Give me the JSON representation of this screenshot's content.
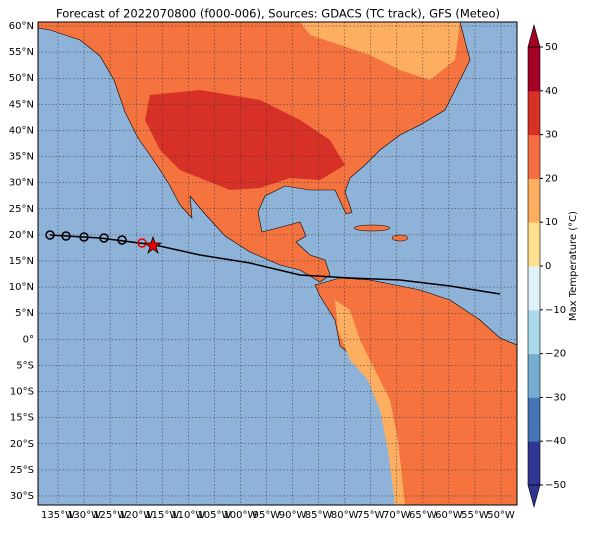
{
  "title": "Forecast of 2022070800 (f000-006), Sources: GDACS (TC track), GFS (Meteo)",
  "latitude_labels": [
    "60°N",
    "55°N",
    "50°N",
    "45°N",
    "40°N",
    "35°N",
    "30°N",
    "25°N",
    "20°N",
    "15°N",
    "10°N",
    "5°N",
    "0°",
    "5°S",
    "10°S",
    "15°S",
    "20°S",
    "25°S",
    "30°S"
  ],
  "longitude_labels": [
    "135°W",
    "130°W",
    "125°W",
    "120°W",
    "115°W",
    "110°W",
    "105°W",
    "100°W",
    "95°W",
    "90°W",
    "85°W",
    "80°W",
    "75°W",
    "70°W",
    "65°W",
    "60°W",
    "55°W",
    "50°W"
  ],
  "colorbar": {
    "label": "Max Temperature (°C)",
    "lim": [
      -50,
      50
    ],
    "ticks": [
      50,
      40,
      30,
      20,
      10,
      0,
      {
        "value": -10,
        "label": "−10"
      },
      {
        "value": -20,
        "label": "−20"
      },
      {
        "value": -30,
        "label": "−30"
      },
      {
        "value": -40,
        "label": "−40"
      },
      {
        "value": -50,
        "label": "−50"
      }
    ],
    "colors": [
      "#313695",
      "#4575b4",
      "#74add1",
      "#abd9e9",
      "#e0f3f8",
      "#fee090",
      "#fdae61",
      "#f46d43",
      "#d73027",
      "#a50026"
    ]
  }
}
